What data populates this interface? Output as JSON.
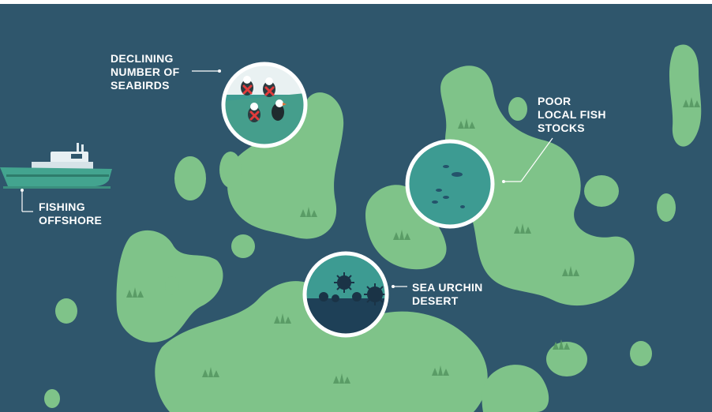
{
  "colors": {
    "sea": "#2f566c",
    "land": "#7fc389",
    "grass": "#5a9c66",
    "callout_text": "#ffffff",
    "circle_border": "#ffffff",
    "circle_fill": "#3d9b92",
    "boat_hull": "#43a48f"
  },
  "labels": {
    "seabirds": [
      "DECLINING",
      "NUMBER OF",
      "SEABIRDS"
    ],
    "fish": [
      "POOR",
      "LOCAL FISH",
      "STOCKS"
    ],
    "fishing": [
      "FISHING",
      "OFFSHORE"
    ],
    "urchin": [
      "SEA URCHIN",
      "DESERT"
    ]
  }
}
